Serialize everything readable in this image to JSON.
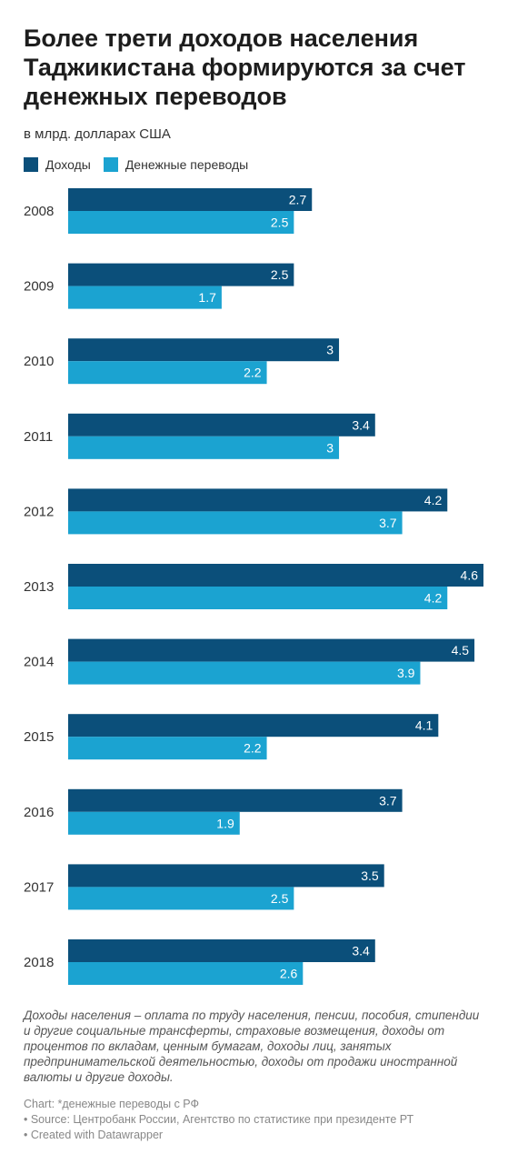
{
  "title": "Более трети доходов населения Таджикистана формируются за счет денежных переводов",
  "subtitle": "в млрд. долларах США",
  "colors": {
    "income": "#0b4f7a",
    "remittances": "#1ba3d1"
  },
  "note": "Доходы населения – оплата по труду населения, пенсии, пособия, стипендии и другие социальные трансферты, страховые возмещения, доходы от процентов по вкладам, ценным бумагам, доходы лиц, занятых предпринимательской деятельностью, доходы от продажи иностранной валюты и другие доходы.",
  "footer": {
    "chart_note": "Chart: *денежные переводы с РФ",
    "source": "• Source: Центробанк России, Агентство по статистике при президенте РТ",
    "created": "• Created with Datawrapper"
  },
  "chart_data": {
    "type": "bar",
    "orientation": "horizontal",
    "categories": [
      "2008",
      "2009",
      "2010",
      "2011",
      "2012",
      "2013",
      "2014",
      "2015",
      "2016",
      "2017",
      "2018"
    ],
    "series": [
      {
        "name": "Доходы",
        "values": [
          2.7,
          2.5,
          3,
          3.4,
          4.2,
          4.6,
          4.5,
          4.1,
          3.7,
          3.5,
          3.4
        ]
      },
      {
        "name": "Денежные переводы",
        "values": [
          2.5,
          1.7,
          2.2,
          3,
          3.7,
          4.2,
          3.9,
          2.2,
          1.9,
          2.5,
          2.6
        ]
      }
    ],
    "xlim": [
      0,
      4.6
    ],
    "legend_position": "top-left",
    "grid": false
  }
}
